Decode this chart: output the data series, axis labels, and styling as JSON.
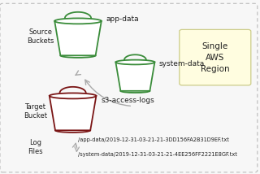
{
  "bg_color": "#f7f7f7",
  "border_color": "#bbbbbb",
  "bucket_green": "#3a8c3a",
  "bucket_dark_red": "#7a1515",
  "bucket_fill_green": "#ffffff",
  "bucket_fill_red": "#ffffff",
  "arrow_color": "#aaaaaa",
  "text_color": "#222222",
  "region_box_fill": "#fffde0",
  "region_box_edge": "#cccc88",
  "source_label": "Source\nBuckets",
  "target_label": "Target\nBucket",
  "log_label": "Log\nFiles",
  "bucket1_name": "app-data",
  "bucket2_name": "system-data",
  "bucket3_name": "s3-access-logs",
  "region_text": "Single\nAWS\nRegion",
  "log1": "/app-data/2019-12-31-03-21-21-3DD156FA2B31D9EF.txt",
  "log2": "/system-data/2019-12-31-03-21-21-4EE256FF2221E8GF.txt",
  "b1x": 0.3,
  "b1y": 0.78,
  "b2x": 0.52,
  "b2y": 0.56,
  "b3x": 0.28,
  "b3y": 0.35,
  "bucket1_size": 0.09,
  "bucket2_size": 0.075,
  "bucket3_size": 0.09,
  "font_size_labels": 6.0,
  "font_size_bucket": 6.5,
  "font_size_log": 4.8,
  "font_size_region": 7.5
}
